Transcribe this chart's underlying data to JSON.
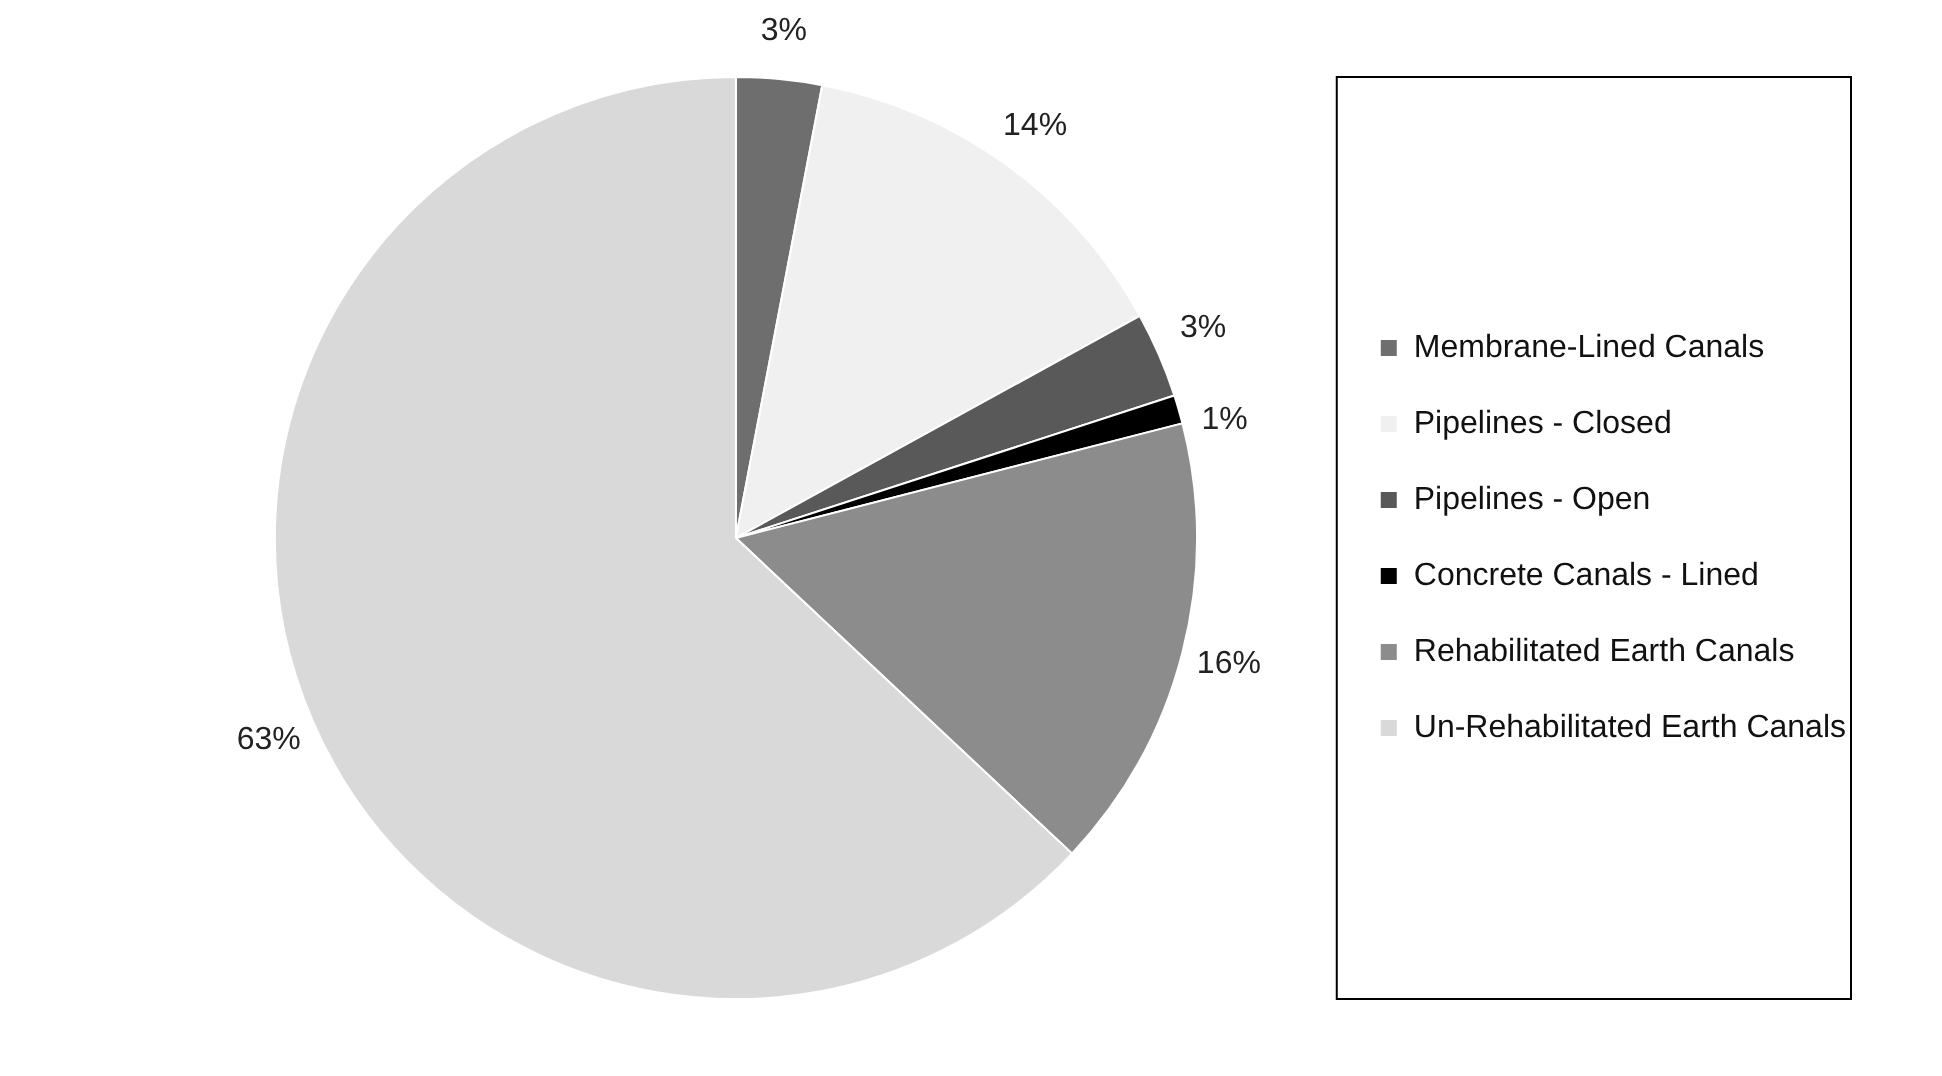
{
  "chart_data": {
    "type": "pie",
    "categories": [
      "Membrane-Lined Canals",
      "Pipelines - Closed",
      "Pipelines - Open",
      "Concrete Canals - Lined",
      "Rehabilitated Earth Canals",
      "Un-Rehabilitated Earth Canals"
    ],
    "values": [
      3,
      14,
      3,
      1,
      16,
      63
    ],
    "value_labels": [
      "3%",
      "14%",
      "3%",
      "1%",
      "16%",
      "63%"
    ],
    "colors": [
      "#6e6e6e",
      "#f0f0f0",
      "#595959",
      "#000000",
      "#8c8c8c",
      "#d9d9d9"
    ],
    "legend": "right"
  }
}
